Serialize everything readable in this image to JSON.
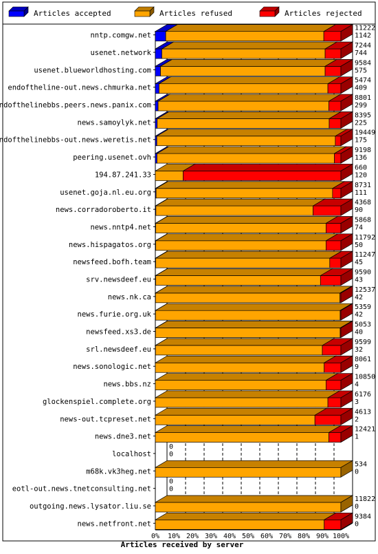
{
  "chart_data": {
    "type": "bar",
    "orientation": "horizontal",
    "stacked": true,
    "style": "3d",
    "title": "",
    "xlabel": "Articles received by server",
    "ylabel": "",
    "xlim": [
      0,
      100
    ],
    "x_unit": "%",
    "grid": true,
    "legend_position": "top",
    "x_ticks": [
      "0%",
      "10%",
      "20%",
      "30%",
      "40%",
      "50%",
      "60%",
      "70%",
      "80%",
      "90%",
      "100%"
    ],
    "series": [
      {
        "name": "Articles accepted",
        "color": "#0000ff"
      },
      {
        "name": "Articles refused",
        "color": "#ffa500"
      },
      {
        "name": "Articles rejected",
        "color": "#ff0000"
      }
    ],
    "rows": [
      {
        "server": "nntp.comgw.net",
        "accepted": 5.6,
        "refused": 85.2,
        "rejected": 9.2,
        "label_top": "11222",
        "label_bottom": "1142"
      },
      {
        "server": "usenet.network",
        "accepted": 3.5,
        "refused": 88.0,
        "rejected": 8.5,
        "label_top": "7244",
        "label_bottom": "744"
      },
      {
        "server": "usenet.blueworldhosting.com",
        "accepted": 2.8,
        "refused": 88.7,
        "rejected": 8.5,
        "label_top": "9584",
        "label_bottom": "575"
      },
      {
        "server": "endoftheline-out.news.chmurka.net",
        "accepted": 2.0,
        "refused": 91.0,
        "rejected": 7.0,
        "label_top": "5474",
        "label_bottom": "409"
      },
      {
        "server": "endofthelinebbs.peers.news.panix.com",
        "accepted": 1.5,
        "refused": 92.0,
        "rejected": 6.5,
        "label_top": "8801",
        "label_bottom": "299"
      },
      {
        "server": "news.samoylyk.net",
        "accepted": 1.0,
        "refused": 92.7,
        "rejected": 6.3,
        "label_top": "8395",
        "label_bottom": "225"
      },
      {
        "server": "endofthelinebbs-out.news.weretis.net",
        "accepted": 0.8,
        "refused": 96.2,
        "rejected": 3.0,
        "label_top": "19449",
        "label_bottom": "175"
      },
      {
        "server": "peering.usenet.ovh",
        "accepted": 0.9,
        "refused": 95.6,
        "rejected": 3.5,
        "label_top": "9198",
        "label_bottom": "136"
      },
      {
        "server": "194.87.241.33",
        "accepted": 0.0,
        "refused": 15.0,
        "rejected": 85.0,
        "label_top": "660",
        "label_bottom": "120"
      },
      {
        "server": "usenet.goja.nl.eu.org",
        "accepted": 0.4,
        "refused": 95.1,
        "rejected": 4.5,
        "label_top": "8731",
        "label_bottom": "111"
      },
      {
        "server": "news.corradoroberto.it",
        "accepted": 0.3,
        "refused": 84.7,
        "rejected": 15.0,
        "label_top": "4368",
        "label_bottom": "90"
      },
      {
        "server": "news.nntp4.net",
        "accepted": 0.2,
        "refused": 91.8,
        "rejected": 8.0,
        "label_top": "5868",
        "label_bottom": "74"
      },
      {
        "server": "news.hispagatos.org",
        "accepted": 0.2,
        "refused": 91.8,
        "rejected": 8.0,
        "label_top": "11792",
        "label_bottom": "50"
      },
      {
        "server": "newsfeed.bofh.team",
        "accepted": 0.2,
        "refused": 93.8,
        "rejected": 6.0,
        "label_top": "11247",
        "label_bottom": "45"
      },
      {
        "server": "srv.newsdeef.eu",
        "accepted": 0.2,
        "refused": 88.8,
        "rejected": 11.0,
        "label_top": "9590",
        "label_bottom": "43"
      },
      {
        "server": "news.nk.ca",
        "accepted": 0.1,
        "refused": 99.4,
        "rejected": 0.5,
        "label_top": "12537",
        "label_bottom": "42"
      },
      {
        "server": "news.furie.org.uk",
        "accepted": 0.1,
        "refused": 99.5,
        "rejected": 0.4,
        "label_top": "5359",
        "label_bottom": "42"
      },
      {
        "server": "newsfeed.xs3.de",
        "accepted": 0.1,
        "refused": 99.5,
        "rejected": 0.4,
        "label_top": "5053",
        "label_bottom": "40"
      },
      {
        "server": "srl.newsdeef.eu",
        "accepted": 0.1,
        "refused": 89.9,
        "rejected": 10.0,
        "label_top": "9599",
        "label_bottom": "32"
      },
      {
        "server": "news.sonologic.net",
        "accepted": 0.0,
        "refused": 91.0,
        "rejected": 9.0,
        "label_top": "8061",
        "label_bottom": "9"
      },
      {
        "server": "news.bbs.nz",
        "accepted": 0.0,
        "refused": 92.0,
        "rejected": 8.0,
        "label_top": "10850",
        "label_bottom": "4"
      },
      {
        "server": "glockenspiel.complete.org",
        "accepted": 0.0,
        "refused": 93.0,
        "rejected": 7.0,
        "label_top": "6176",
        "label_bottom": "3"
      },
      {
        "server": "news-out.tcpreset.net",
        "accepted": 0.0,
        "refused": 86.0,
        "rejected": 14.0,
        "label_top": "4613",
        "label_bottom": "2"
      },
      {
        "server": "news.dne3.net",
        "accepted": 0.0,
        "refused": 93.5,
        "rejected": 6.5,
        "label_top": "12421",
        "label_bottom": "1"
      },
      {
        "server": "localhost",
        "accepted": 0.0,
        "refused": 0.0,
        "rejected": 0.0,
        "label_top": "0",
        "label_bottom": "0"
      },
      {
        "server": "m68k.vk3heg.net",
        "accepted": 0.0,
        "refused": 100.0,
        "rejected": 0.0,
        "label_top": "534",
        "label_bottom": "0"
      },
      {
        "server": "eotl-out.news.tnetconsulting.net",
        "accepted": 0.0,
        "refused": 0.0,
        "rejected": 0.0,
        "label_top": "0",
        "label_bottom": "0"
      },
      {
        "server": "outgoing.news.lysator.liu.se",
        "accepted": 0.0,
        "refused": 100.0,
        "rejected": 0.0,
        "label_top": "11822",
        "label_bottom": "0"
      },
      {
        "server": "news.netfront.net",
        "accepted": 0.0,
        "refused": 91.0,
        "rejected": 9.0,
        "label_top": "9384",
        "label_bottom": "0"
      }
    ]
  }
}
